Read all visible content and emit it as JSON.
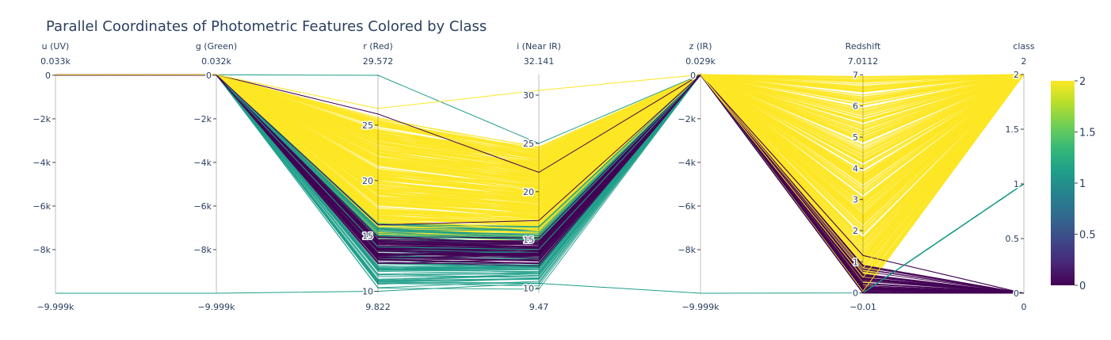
{
  "chart_data": {
    "type": "parallel-coordinates",
    "title": "Parallel Coordinates of Photometric Features Colored by Class",
    "color_by": "class",
    "colorscale": [
      "#440154",
      "#482878",
      "#3e4989",
      "#31688e",
      "#26828e",
      "#1f9e89",
      "#35b779",
      "#6ece58",
      "#b5de2b",
      "#fde725"
    ],
    "colorbar": {
      "range": [
        0,
        2
      ],
      "ticks": [
        0,
        0.5,
        1,
        1.5,
        2
      ],
      "tick_labels": [
        "0",
        "0.5",
        "1",
        "1.5",
        "2"
      ]
    },
    "dimensions": [
      {
        "label": "u (UV)",
        "range": [
          -9999,
          33
        ],
        "top_label": "0.033k",
        "bottom_label": "−9.999k",
        "ticks": [
          0,
          -2000,
          -4000,
          -6000,
          -8000
        ],
        "tick_labels": [
          "0",
          "−2k",
          "−4k",
          "−6k",
          "−8k"
        ]
      },
      {
        "label": "g (Green)",
        "range": [
          -9999,
          32
        ],
        "top_label": "0.032k",
        "bottom_label": "−9.999k",
        "ticks": [
          0,
          -2000,
          -4000,
          -6000,
          -8000
        ],
        "tick_labels": [
          "0",
          "−2k",
          "−4k",
          "−6k",
          "−8k"
        ]
      },
      {
        "label": "r (Red)",
        "range": [
          9.822,
          29.572
        ],
        "top_label": "29.572",
        "bottom_label": "9.822",
        "ticks": [
          25,
          20,
          15,
          10
        ],
        "tick_labels": [
          "25",
          "20",
          "15",
          "10"
        ]
      },
      {
        "label": "i (Near IR)",
        "range": [
          9.47,
          32.141
        ],
        "top_label": "32.141",
        "bottom_label": "9.47",
        "ticks": [
          30,
          25,
          20,
          15,
          10
        ],
        "tick_labels": [
          "30",
          "25",
          "20",
          "15",
          "10"
        ]
      },
      {
        "label": "z (IR)",
        "range": [
          -9999,
          29
        ],
        "top_label": "0.029k",
        "bottom_label": "−9.999k",
        "ticks": [
          0,
          -2000,
          -4000,
          -6000,
          -8000
        ],
        "tick_labels": [
          "0",
          "−2k",
          "−4k",
          "−6k",
          "−8k"
        ]
      },
      {
        "label": "Redshift",
        "range": [
          -0.01,
          7.0112
        ],
        "top_label": "7.0112",
        "bottom_label": "−0.01",
        "ticks": [
          7,
          6,
          5,
          4,
          3,
          2,
          1,
          0
        ],
        "tick_labels": [
          "7",
          "6",
          "5",
          "4",
          "3",
          "2",
          "1",
          "0"
        ]
      },
      {
        "label": "class",
        "range": [
          0,
          2
        ],
        "top_label": "2",
        "bottom_label": "0",
        "ticks": [
          2,
          1.5,
          1,
          0.5,
          0
        ],
        "tick_labels": [
          "2",
          "1.5",
          "1",
          "0.5",
          "0"
        ]
      }
    ],
    "representative_lines": [
      {
        "class": 2,
        "values": [
          20,
          19,
          18.0,
          17.5,
          18,
          0.05,
          2
        ]
      },
      {
        "class": 2,
        "values": [
          22,
          21,
          20.5,
          20.0,
          20,
          0.8,
          2
        ]
      },
      {
        "class": 2,
        "values": [
          24,
          23,
          22.5,
          22.0,
          22,
          2.0,
          2
        ]
      },
      {
        "class": 2,
        "values": [
          25,
          24,
          24.0,
          23.5,
          23,
          3.5,
          2
        ]
      },
      {
        "class": 2,
        "values": [
          26,
          25,
          25.0,
          24.5,
          24,
          5.0,
          2
        ]
      },
      {
        "class": 2,
        "values": [
          21,
          20,
          19.0,
          18.5,
          19,
          6.5,
          2
        ]
      },
      {
        "class": 2,
        "values": [
          19,
          18,
          16.5,
          16.0,
          16,
          4.5,
          2
        ]
      },
      {
        "class": 1,
        "values": [
          18,
          17,
          15.0,
          15.0,
          14,
          0.0,
          1
        ]
      },
      {
        "class": 1,
        "values": [
          17,
          16,
          14.0,
          14.0,
          13,
          0.0,
          1
        ]
      },
      {
        "class": 1,
        "values": [
          -9999,
          -9999,
          10.0,
          10.5,
          -9999,
          0.0,
          1
        ]
      },
      {
        "class": 1,
        "values": [
          20,
          19,
          29.5,
          25.0,
          20,
          0.0,
          1
        ]
      },
      {
        "class": 0,
        "values": [
          19,
          18,
          13.0,
          13.5,
          14,
          0.0,
          0
        ]
      },
      {
        "class": 0,
        "values": [
          22,
          21,
          12.5,
          13.0,
          13,
          0.0,
          0
        ]
      },
      {
        "class": 0,
        "values": [
          18,
          17,
          16.0,
          17.0,
          15,
          0.0,
          0
        ]
      },
      {
        "class": 0,
        "values": [
          21,
          20,
          26.0,
          22.0,
          21,
          0.0,
          0
        ]
      },
      {
        "class": 2,
        "values": [
          23,
          22,
          26.5,
          30.5,
          22,
          0.5,
          2
        ]
      }
    ]
  }
}
